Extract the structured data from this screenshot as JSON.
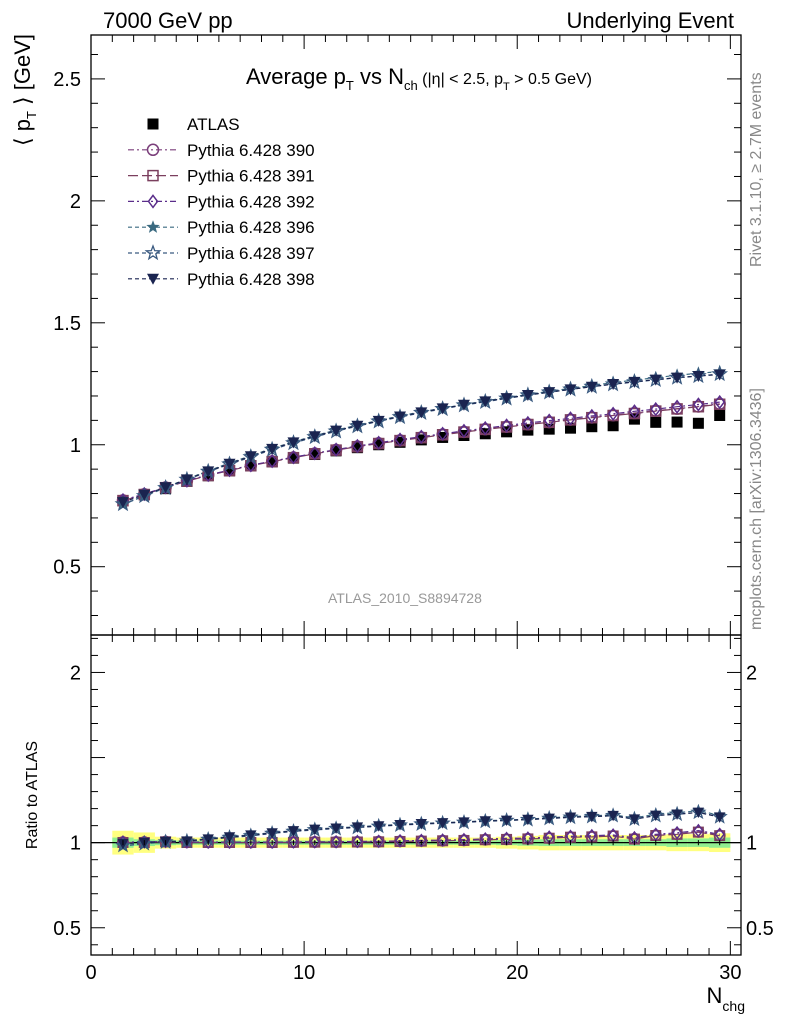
{
  "header": {
    "left": "7000 GeV pp",
    "right": "Underlying Event"
  },
  "side_labels": {
    "rivet": "Rivet 3.1.10, ≥ 2.7M events",
    "mcplots": "mcplots.cern.ch [arXiv:1306.3436]"
  },
  "watermark": "ATLAS_2010_S8894728",
  "chart_data": [
    {
      "type": "scatter",
      "panel": "main",
      "title": "Average p_T vs N_ch (|η| < 2.5, p_T > 0.5 GeV)",
      "ylabel": "⟨ p_T ⟩ [GeV]",
      "xlabel": "",
      "xlim": [
        0,
        30.5
      ],
      "ylim": [
        0.22,
        2.68
      ],
      "x_ticks": [
        0,
        10,
        20,
        30
      ],
      "y_ticks": [
        0.5,
        1,
        1.5,
        2,
        2.5
      ],
      "y_tick_labels": [
        "0.5",
        "1",
        "1.5",
        "2",
        "2.5"
      ],
      "legend_position": "top-left",
      "x": [
        1.5,
        2.5,
        3.5,
        4.5,
        5.5,
        6.5,
        7.5,
        8.5,
        9.5,
        10.5,
        11.5,
        12.5,
        13.5,
        14.5,
        15.5,
        16.5,
        17.5,
        18.5,
        19.5,
        20.5,
        21.5,
        22.5,
        23.5,
        24.5,
        25.5,
        26.5,
        27.5,
        28.5,
        29.5
      ],
      "series": [
        {
          "name": "ATLAS",
          "color": "#000000",
          "marker": "square-filled",
          "values": [
            0.77,
            0.795,
            0.82,
            0.85,
            0.873,
            0.893,
            0.913,
            0.93,
            0.945,
            0.96,
            0.975,
            0.988,
            1.0,
            1.01,
            1.02,
            1.03,
            1.038,
            1.045,
            1.053,
            1.06,
            1.064,
            1.068,
            1.074,
            1.078,
            1.105,
            1.092,
            1.093,
            1.088,
            1.12
          ]
        },
        {
          "name": "Pythia 6.428 390",
          "color": "#7b3f7b",
          "marker": "circle-open",
          "dash": "6,3,2,3",
          "values": [
            0.772,
            0.797,
            0.825,
            0.852,
            0.875,
            0.895,
            0.915,
            0.932,
            0.948,
            0.964,
            0.979,
            0.993,
            1.006,
            1.018,
            1.03,
            1.042,
            1.053,
            1.064,
            1.074,
            1.084,
            1.093,
            1.103,
            1.112,
            1.121,
            1.13,
            1.14,
            1.148,
            1.157,
            1.168
          ]
        },
        {
          "name": "Pythia 6.428 391",
          "color": "#7b3f5e",
          "marker": "square-open",
          "dash": "10,4",
          "values": [
            0.771,
            0.796,
            0.824,
            0.851,
            0.874,
            0.894,
            0.914,
            0.931,
            0.947,
            0.963,
            0.978,
            0.992,
            1.005,
            1.017,
            1.029,
            1.041,
            1.052,
            1.063,
            1.073,
            1.083,
            1.092,
            1.102,
            1.111,
            1.12,
            1.128,
            1.138,
            1.147,
            1.156,
            1.166
          ]
        },
        {
          "name": "Pythia 6.428 392",
          "color": "#5a2d8a",
          "marker": "diamond-open",
          "dash": "6,3,2,3",
          "values": [
            0.773,
            0.798,
            0.826,
            0.853,
            0.876,
            0.896,
            0.916,
            0.933,
            0.949,
            0.965,
            0.98,
            0.995,
            1.008,
            1.021,
            1.033,
            1.045,
            1.057,
            1.068,
            1.079,
            1.089,
            1.099,
            1.108,
            1.118,
            1.127,
            1.137,
            1.146,
            1.156,
            1.165,
            1.175
          ]
        },
        {
          "name": "Pythia 6.428 396",
          "color": "#3a6a80",
          "marker": "star-filled",
          "dash": "4,3",
          "values": [
            0.755,
            0.79,
            0.825,
            0.86,
            0.893,
            0.925,
            0.955,
            0.985,
            1.012,
            1.037,
            1.06,
            1.08,
            1.1,
            1.118,
            1.135,
            1.15,
            1.165,
            1.18,
            1.193,
            1.206,
            1.219,
            1.231,
            1.243,
            1.255,
            1.265,
            1.275,
            1.285,
            1.293,
            1.3
          ]
        },
        {
          "name": "Pythia 6.428 397",
          "color": "#3a5a80",
          "marker": "star-open",
          "dash": "4,3",
          "values": [
            0.757,
            0.79,
            0.823,
            0.857,
            0.89,
            0.92,
            0.95,
            0.98,
            1.007,
            1.032,
            1.055,
            1.076,
            1.096,
            1.114,
            1.131,
            1.147,
            1.162,
            1.176,
            1.19,
            1.203,
            1.215,
            1.227,
            1.238,
            1.248,
            1.257,
            1.266,
            1.275,
            1.282,
            1.29
          ]
        },
        {
          "name": "Pythia 6.428 398",
          "color": "#1a2450",
          "marker": "triangle-down-filled",
          "dash": "4,3",
          "values": [
            0.765,
            0.795,
            0.826,
            0.858,
            0.891,
            0.922,
            0.953,
            0.983,
            1.01,
            1.035,
            1.058,
            1.078,
            1.098,
            1.116,
            1.133,
            1.149,
            1.164,
            1.178,
            1.191,
            1.204,
            1.216,
            1.227,
            1.238,
            1.249,
            1.258,
            1.267,
            1.275,
            1.282,
            1.288
          ]
        }
      ]
    },
    {
      "type": "scatter",
      "panel": "ratio",
      "ylabel": "Ratio to ATLAS",
      "xlabel": "N_chg",
      "xlim": [
        0,
        30.5
      ],
      "ylim": [
        0.34,
        2.22
      ],
      "x_ticks": [
        0,
        10,
        20,
        30
      ],
      "x_tick_labels": [
        "0",
        "10",
        "20",
        "30"
      ],
      "y_ticks": [
        0.5,
        1,
        2
      ],
      "y_tick_labels": [
        "0.5",
        "1",
        "2"
      ],
      "x": [
        1.5,
        2.5,
        3.5,
        4.5,
        5.5,
        6.5,
        7.5,
        8.5,
        9.5,
        10.5,
        11.5,
        12.5,
        13.5,
        14.5,
        15.5,
        16.5,
        17.5,
        18.5,
        19.5,
        20.5,
        21.5,
        22.5,
        23.5,
        24.5,
        25.5,
        26.5,
        27.5,
        28.5,
        29.5
      ],
      "band_yellow_halfwidth": [
        0.07,
        0.06,
        0.035,
        0.03,
        0.03,
        0.03,
        0.03,
        0.03,
        0.03,
        0.03,
        0.03,
        0.03,
        0.03,
        0.03,
        0.03,
        0.03,
        0.03,
        0.03,
        0.035,
        0.04,
        0.045,
        0.045,
        0.045,
        0.045,
        0.045,
        0.045,
        0.05,
        0.05,
        0.055
      ],
      "band_green_halfwidth": [
        0.03,
        0.02,
        0.015,
        0.012,
        0.012,
        0.012,
        0.012,
        0.012,
        0.012,
        0.012,
        0.012,
        0.012,
        0.012,
        0.012,
        0.012,
        0.012,
        0.012,
        0.012,
        0.015,
        0.018,
        0.02,
        0.02,
        0.02,
        0.02,
        0.02,
        0.02,
        0.025,
        0.025,
        0.03
      ],
      "series": [
        {
          "name": "Pythia 6.428 390",
          "values": [
            1.003,
            1.003,
            1.006,
            1.002,
            1.002,
            1.002,
            1.002,
            1.002,
            1.003,
            1.004,
            1.004,
            1.005,
            1.006,
            1.008,
            1.01,
            1.012,
            1.014,
            1.018,
            1.02,
            1.023,
            1.027,
            1.033,
            1.035,
            1.04,
            1.023,
            1.044,
            1.05,
            1.063,
            1.043
          ]
        },
        {
          "name": "Pythia 6.428 391",
          "values": [
            1.001,
            1.001,
            1.005,
            1.001,
            1.001,
            1.001,
            1.001,
            1.001,
            1.002,
            1.003,
            1.003,
            1.004,
            1.005,
            1.007,
            1.009,
            1.011,
            1.013,
            1.017,
            1.019,
            1.022,
            1.026,
            1.032,
            1.034,
            1.039,
            1.021,
            1.042,
            1.049,
            1.062,
            1.041
          ]
        },
        {
          "name": "Pythia 6.428 392",
          "values": [
            1.004,
            1.004,
            1.007,
            1.004,
            1.003,
            1.003,
            1.003,
            1.003,
            1.004,
            1.005,
            1.005,
            1.007,
            1.008,
            1.011,
            1.013,
            1.015,
            1.018,
            1.022,
            1.025,
            1.027,
            1.033,
            1.037,
            1.041,
            1.045,
            1.029,
            1.049,
            1.058,
            1.071,
            1.049
          ]
        },
        {
          "name": "Pythia 6.428 396",
          "values": [
            0.98,
            0.994,
            1.006,
            1.012,
            1.023,
            1.036,
            1.046,
            1.059,
            1.071,
            1.08,
            1.087,
            1.093,
            1.1,
            1.107,
            1.113,
            1.117,
            1.122,
            1.129,
            1.133,
            1.138,
            1.146,
            1.153,
            1.157,
            1.164,
            1.145,
            1.168,
            1.176,
            1.188,
            1.161
          ]
        },
        {
          "name": "Pythia 6.428 397",
          "values": [
            0.983,
            0.994,
            1.004,
            1.008,
            1.019,
            1.03,
            1.04,
            1.054,
            1.066,
            1.075,
            1.082,
            1.089,
            1.096,
            1.103,
            1.109,
            1.114,
            1.119,
            1.125,
            1.13,
            1.135,
            1.142,
            1.149,
            1.153,
            1.158,
            1.138,
            1.159,
            1.167,
            1.178,
            1.152
          ]
        },
        {
          "name": "Pythia 6.428 398",
          "values": [
            0.994,
            1.0,
            1.007,
            1.009,
            1.021,
            1.033,
            1.044,
            1.057,
            1.069,
            1.078,
            1.085,
            1.091,
            1.098,
            1.105,
            1.111,
            1.116,
            1.121,
            1.127,
            1.131,
            1.136,
            1.143,
            1.149,
            1.153,
            1.159,
            1.138,
            1.16,
            1.167,
            1.178,
            1.15
          ]
        }
      ]
    }
  ]
}
